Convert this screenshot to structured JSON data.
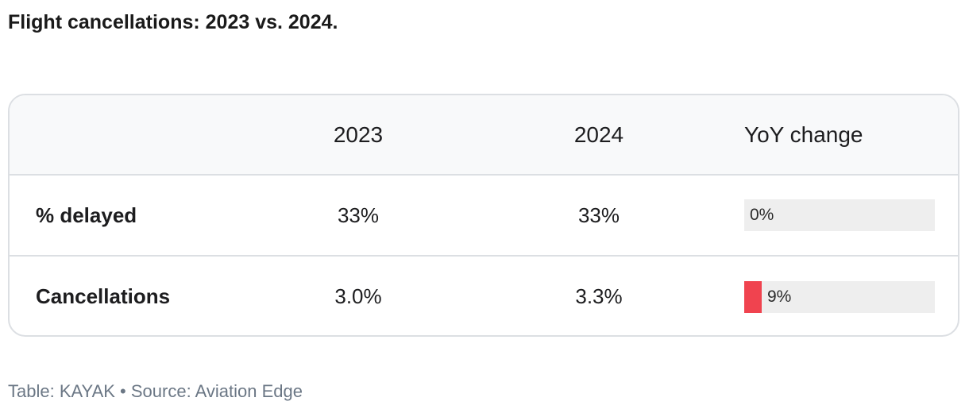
{
  "title": "Flight cancellations: 2023 vs. 2024.",
  "chart_data": {
    "type": "table",
    "columns": [
      "",
      "2023",
      "2024",
      "YoY change"
    ],
    "rows": [
      {
        "label": "% delayed",
        "v2023": "33%",
        "v2024": "33%",
        "yoy": "0%",
        "yoy_value": 0
      },
      {
        "label": "Cancellations",
        "v2023": "3.0%",
        "v2024": "3.3%",
        "yoy": "9%",
        "yoy_value": 9
      }
    ],
    "yoy_bar_max": 100,
    "bar_color": "#f0434f",
    "bar_track_color": "#eeeeee"
  },
  "footer": {
    "table_by": "Table: KAYAK",
    "separator": "•",
    "source": "Source: Aviation Edge"
  }
}
